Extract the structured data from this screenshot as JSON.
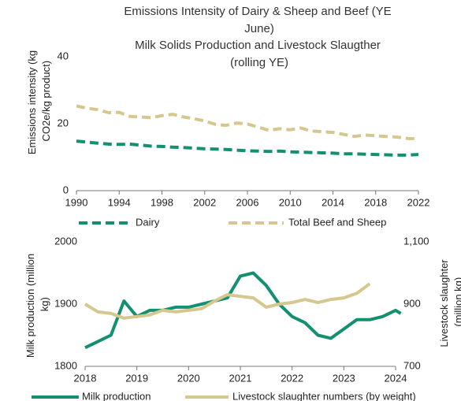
{
  "chart_data": [
    {
      "type": "line",
      "title": "Emissions Intensity of Dairy & Sheep and Beef (YE June)",
      "ylabel": "Emissions intensity (kg CO2e/kg product)",
      "x": [
        1990,
        1991,
        1992,
        1993,
        1994,
        1995,
        1996,
        1997,
        1998,
        1999,
        2000,
        2001,
        2002,
        2003,
        2004,
        2005,
        2006,
        2007,
        2008,
        2009,
        2010,
        2011,
        2012,
        2013,
        2014,
        2015,
        2016,
        2017,
        2018,
        2019,
        2020,
        2021,
        2022
      ],
      "xlim": [
        1990,
        2022
      ],
      "xticks": [
        1990,
        1994,
        1998,
        2002,
        2006,
        2010,
        2014,
        2018,
        2022
      ],
      "ylim": [
        0,
        40
      ],
      "yticks": [
        0,
        20,
        40
      ],
      "series": [
        {
          "name": "Dairy",
          "color": "#12906f",
          "line_style": "dashed",
          "values": [
            14.8,
            14.5,
            14.2,
            13.9,
            13.8,
            13.9,
            13.6,
            13.3,
            13.2,
            13.0,
            12.9,
            12.7,
            12.5,
            12.4,
            12.3,
            12.1,
            11.9,
            11.8,
            11.7,
            11.8,
            11.6,
            11.5,
            11.4,
            11.3,
            11.2,
            11.0,
            11.0,
            10.9,
            10.8,
            10.7,
            10.6,
            10.6,
            10.8
          ]
        },
        {
          "name": "Total Beef and Sheep",
          "color": "#d6c78f",
          "line_style": "dashed",
          "values": [
            25.3,
            24.6,
            24.2,
            23.3,
            23.4,
            22.2,
            22.0,
            21.8,
            22.4,
            22.8,
            22.0,
            21.5,
            20.8,
            19.8,
            19.5,
            20.2,
            19.9,
            19.0,
            18.0,
            18.5,
            18.2,
            18.7,
            17.8,
            17.6,
            17.4,
            16.8,
            16.2,
            16.6,
            16.4,
            16.2,
            16.0,
            15.6,
            15.5
          ]
        }
      ]
    },
    {
      "type": "line",
      "title": "Milk Solids Production and Livestock Slaugther (rolling YE)",
      "ylabel": "Milk production (million kg)",
      "y2label": "Livestock slaughter (million kg)",
      "x": [
        2018,
        2018.25,
        2018.5,
        2018.75,
        2019,
        2019.25,
        2019.5,
        2019.75,
        2020,
        2020.25,
        2020.5,
        2020.75,
        2021,
        2021.25,
        2021.5,
        2021.75,
        2022,
        2022.25,
        2022.5,
        2022.75,
        2023,
        2023.25,
        2023.5,
        2023.75,
        2024,
        2024.1
      ],
      "xlim": [
        2018,
        2024
      ],
      "xticks": [
        2018,
        2019,
        2020,
        2021,
        2022,
        2023,
        2024
      ],
      "ylim": [
        1800,
        2000
      ],
      "yticks": [
        1800,
        1900,
        2000
      ],
      "y2lim": [
        700,
        1100
      ],
      "y2ticks": [
        700,
        900,
        {
          "value": 1100,
          "label": "1,100"
        }
      ],
      "series": [
        {
          "name": "Milk production",
          "color": "#12906f",
          "line_style": "solid",
          "values": [
            1830,
            1840,
            1850,
            1905,
            1880,
            1890,
            1890,
            1895,
            1895,
            1900,
            1905,
            1910,
            1945,
            1950,
            1930,
            1900,
            1880,
            1870,
            1850,
            1845,
            1860,
            1875,
            1875,
            1880,
            1890,
            1885
          ]
        },
        {
          "name": "Livestock slaughter numbers (by weight)",
          "color": "#d6c78f",
          "line_style": "solid",
          "axis": "y2",
          "values": [
            900,
            875,
            870,
            855,
            860,
            865,
            880,
            875,
            880,
            885,
            910,
            930,
            925,
            920,
            890,
            900,
            905,
            915,
            905,
            915,
            920,
            935,
            965,
            null,
            null,
            null
          ]
        }
      ]
    }
  ]
}
